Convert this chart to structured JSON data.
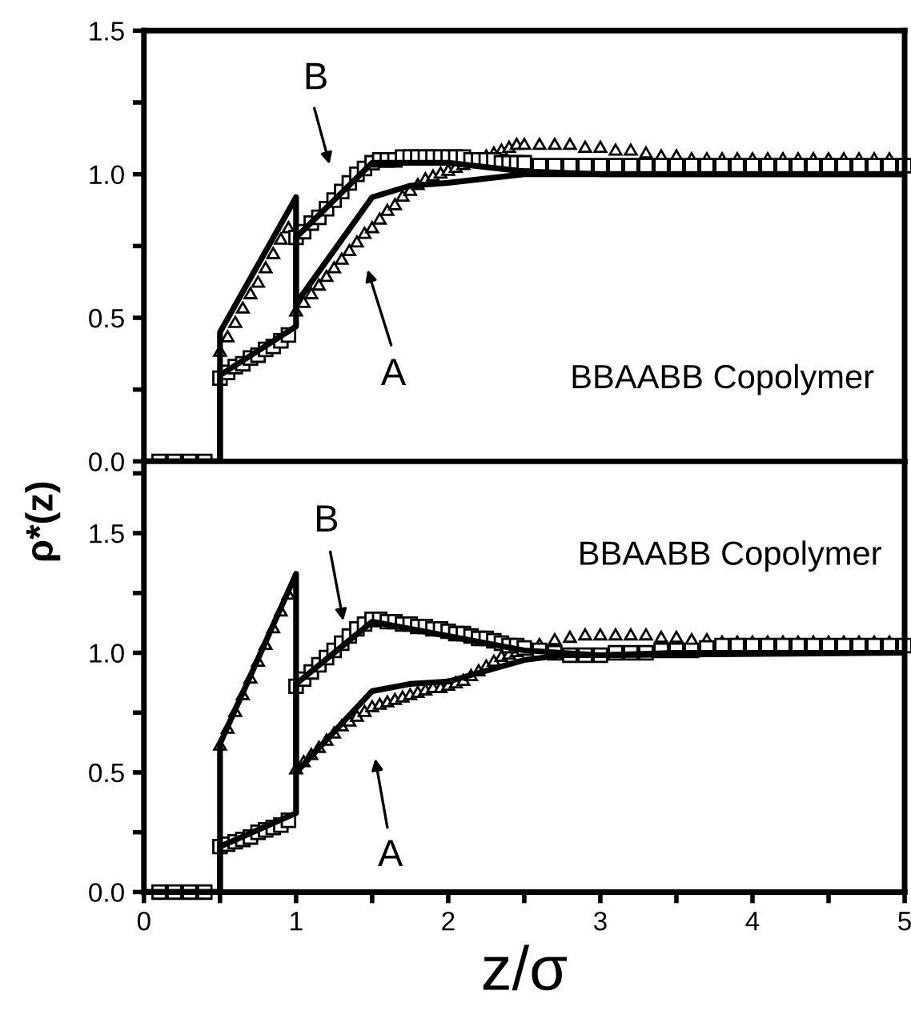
{
  "chart_data": [
    {
      "type": "scatter",
      "xlim": [
        0,
        5
      ],
      "ylim": [
        0,
        1.5
      ],
      "tick_labels": "y",
      "xticks": [
        0,
        {
          "value": 0.5,
          "label": null
        },
        1,
        {
          "value": 1.5,
          "label": null
        },
        2,
        {
          "value": 2.5,
          "label": null
        },
        3,
        {
          "value": 3.5,
          "label": null
        },
        4,
        {
          "value": 4.5,
          "label": null
        },
        5
      ],
      "yticks": [
        {
          "value": 0,
          "label": "0.0"
        },
        {
          "value": 0.25,
          "label": null
        },
        {
          "value": 0.5,
          "label": "0.5"
        },
        {
          "value": 0.75,
          "label": null
        },
        {
          "value": 1,
          "label": "1.0"
        },
        {
          "value": 1.25,
          "label": null
        },
        {
          "value": 1.5,
          "label": "1.5"
        }
      ],
      "series": [
        {
          "marker": "triangle",
          "color": "#000000",
          "x": [
            0.5,
            0.55,
            0.6,
            0.65,
            0.7,
            0.75,
            0.8,
            0.85,
            0.9,
            0.95,
            1,
            1.05,
            1.1,
            1.15,
            1.2,
            1.25,
            1.3,
            1.35,
            1.4,
            1.45,
            1.5,
            1.55,
            1.6,
            1.65,
            1.7,
            1.75,
            1.8,
            1.85,
            1.9,
            1.95,
            2,
            2.05,
            2.1,
            2.25,
            2.3,
            2.35,
            2.4,
            2.45,
            2.5,
            2.6,
            2.7,
            2.8,
            2.9,
            3,
            3.1,
            3.2,
            3.3,
            3.4,
            3.5,
            3.6,
            3.7,
            3.8,
            3.9,
            4,
            4.1,
            4.2,
            4.3,
            4.4,
            4.5,
            4.6,
            4.7,
            4.8,
            4.9
          ],
          "values": [
            0.38,
            0.43,
            0.48,
            0.53,
            0.58,
            0.62,
            0.67,
            0.72,
            0.77,
            0.81,
            0.52,
            0.55,
            0.58,
            0.61,
            0.64,
            0.67,
            0.7,
            0.73,
            0.76,
            0.79,
            0.81,
            0.84,
            0.87,
            0.89,
            0.92,
            0.94,
            0.96,
            0.98,
            0.99,
            1.0,
            1.01,
            1.02,
            1.03,
            1.06,
            1.07,
            1.08,
            1.09,
            1.1,
            1.1,
            1.1,
            1.1,
            1.1,
            1.09,
            1.09,
            1.08,
            1.08,
            1.07,
            1.06,
            1.06,
            1.05,
            1.05,
            1.05,
            1.05,
            1.05,
            1.05,
            1.05,
            1.05,
            1.05,
            1.05,
            1.05,
            1.05,
            1.05,
            1.05
          ]
        },
        {
          "marker": "square",
          "color": "#000000",
          "x": [
            0.1,
            0.2,
            0.3,
            0.4,
            0.5,
            0.55,
            0.6,
            0.65,
            0.7,
            0.75,
            0.8,
            0.85,
            0.9,
            0.95,
            1,
            1.05,
            1.1,
            1.15,
            1.2,
            1.25,
            1.3,
            1.35,
            1.4,
            1.45,
            1.5,
            1.55,
            1.6,
            1.65,
            1.7,
            1.75,
            1.8,
            1.85,
            1.9,
            1.95,
            2,
            2.05,
            2.1,
            2.15,
            2.2,
            2.25,
            2.3,
            2.35,
            2.4,
            2.45,
            2.5,
            2.6,
            2.7,
            2.8,
            2.9,
            3,
            3.1,
            3.2,
            3.3,
            3.4,
            3.5,
            3.6,
            3.7,
            3.8,
            3.9,
            4,
            4.1,
            4.2,
            4.3,
            4.4,
            4.5,
            4.6,
            4.7,
            4.8,
            4.9,
            5
          ],
          "values": [
            0,
            0,
            0,
            0,
            0.29,
            0.31,
            0.33,
            0.34,
            0.36,
            0.37,
            0.39,
            0.4,
            0.42,
            0.44,
            0.78,
            0.8,
            0.83,
            0.85,
            0.88,
            0.91,
            0.94,
            0.97,
            1.0,
            1.02,
            1.04,
            1.05,
            1.05,
            1.05,
            1.06,
            1.06,
            1.06,
            1.06,
            1.06,
            1.06,
            1.06,
            1.06,
            1.06,
            1.05,
            1.05,
            1.05,
            1.05,
            1.04,
            1.04,
            1.04,
            1.04,
            1.03,
            1.03,
            1.03,
            1.03,
            1.03,
            1.03,
            1.03,
            1.03,
            1.03,
            1.03,
            1.03,
            1.03,
            1.03,
            1.03,
            1.03,
            1.03,
            1.03,
            1.03,
            1.03,
            1.03,
            1.03,
            1.03,
            1.03,
            1.03,
            1.03
          ]
        },
        {
          "type": "line",
          "line_style": "solid",
          "color": "#000000",
          "x": [
            0,
            0.5,
            0.5,
            1.0,
            1.0,
            1.5,
            1.75,
            2.0,
            2.5,
            5
          ],
          "values": [
            0,
            0,
            0.45,
            0.92,
            0.55,
            0.92,
            0.96,
            0.97,
            1.0,
            1.0
          ]
        },
        {
          "type": "line",
          "line_style": "solid",
          "color": "#000000",
          "x": [
            0,
            0.5,
            0.5,
            1.0,
            1.0,
            1.5,
            2.0,
            2.5,
            3,
            5
          ],
          "values": [
            0,
            0,
            0.3,
            0.47,
            0.78,
            1.04,
            1.04,
            1.01,
            1.0,
            1.0
          ]
        }
      ],
      "annotations": [
        "B",
        "A",
        "BBAABB Copolymer"
      ]
    },
    {
      "type": "scatter",
      "xlim": [
        0,
        5
      ],
      "ylim": [
        0,
        1.8
      ],
      "xlabel": "z/σ",
      "ylabel": "ρ*(z)",
      "xticks": [
        0,
        {
          "value": 0.5,
          "label": null
        },
        1,
        {
          "value": 1.5,
          "label": null
        },
        2,
        {
          "value": 2.5,
          "label": null
        },
        3,
        {
          "value": 3.5,
          "label": null
        },
        4,
        {
          "value": 4.5,
          "label": null
        },
        5
      ],
      "yticks": [
        {
          "value": 0,
          "label": "0.0"
        },
        {
          "value": 0.25,
          "label": null
        },
        {
          "value": 0.5,
          "label": "0.5"
        },
        {
          "value": 0.75,
          "label": null
        },
        {
          "value": 1,
          "label": "1.0"
        },
        {
          "value": 1.25,
          "label": null
        },
        {
          "value": 1.5,
          "label": "1.5"
        },
        {
          "value": 1.75,
          "label": null
        }
      ],
      "series": [
        {
          "marker": "triangle",
          "color": "#000000",
          "x": [
            0.5,
            0.55,
            0.6,
            0.65,
            0.7,
            0.75,
            0.8,
            0.85,
            0.9,
            0.95,
            1,
            1.05,
            1.1,
            1.15,
            1.2,
            1.25,
            1.3,
            1.35,
            1.4,
            1.45,
            1.5,
            1.55,
            1.6,
            1.65,
            1.7,
            1.75,
            1.8,
            1.85,
            1.9,
            1.95,
            2,
            2.05,
            2.1,
            2.15,
            2.2,
            2.25,
            2.3,
            2.35,
            2.4,
            2.45,
            2.6,
            2.7,
            2.8,
            2.9,
            3,
            3.1,
            3.2,
            3.3,
            3.4,
            3.5,
            3.6,
            3.7,
            3.8,
            3.9,
            4,
            4.1,
            4.2,
            4.3,
            4.4,
            4.5,
            4.6,
            4.7,
            4.8,
            4.9
          ],
          "values": [
            0.61,
            0.68,
            0.75,
            0.82,
            0.89,
            0.96,
            1.03,
            1.1,
            1.17,
            1.24,
            0.51,
            0.54,
            0.57,
            0.6,
            0.63,
            0.66,
            0.69,
            0.71,
            0.73,
            0.75,
            0.77,
            0.78,
            0.79,
            0.8,
            0.81,
            0.82,
            0.83,
            0.84,
            0.85,
            0.85,
            0.86,
            0.87,
            0.88,
            0.9,
            0.92,
            0.94,
            0.96,
            0.98,
            0.99,
            1.0,
            1.03,
            1.05,
            1.06,
            1.07,
            1.07,
            1.07,
            1.07,
            1.07,
            1.06,
            1.06,
            1.05,
            1.05,
            1.04,
            1.04,
            1.04,
            1.04,
            1.04,
            1.04,
            1.04,
            1.04,
            1.04,
            1.04,
            1.04,
            1.04
          ]
        },
        {
          "marker": "square",
          "color": "#000000",
          "x": [
            0.1,
            0.2,
            0.3,
            0.4,
            0.5,
            0.55,
            0.6,
            0.65,
            0.7,
            0.75,
            0.8,
            0.85,
            0.9,
            0.95,
            1,
            1.05,
            1.1,
            1.15,
            1.2,
            1.25,
            1.3,
            1.35,
            1.4,
            1.45,
            1.5,
            1.55,
            1.6,
            1.65,
            1.7,
            1.75,
            1.8,
            1.85,
            1.9,
            1.95,
            2,
            2.05,
            2.1,
            2.15,
            2.2,
            2.25,
            2.3,
            2.35,
            2.4,
            2.45,
            2.5,
            2.6,
            2.7,
            2.8,
            2.9,
            3,
            3.1,
            3.2,
            3.3,
            3.4,
            3.5,
            3.6,
            3.7,
            3.8,
            3.9,
            4,
            4.1,
            4.2,
            4.3,
            4.4,
            4.5,
            4.6,
            4.7,
            4.8,
            4.9,
            5
          ],
          "values": [
            0,
            0,
            0,
            0,
            0.19,
            0.2,
            0.21,
            0.22,
            0.23,
            0.25,
            0.26,
            0.27,
            0.28,
            0.3,
            0.86,
            0.89,
            0.92,
            0.95,
            0.98,
            1.01,
            1.04,
            1.07,
            1.1,
            1.12,
            1.14,
            1.14,
            1.13,
            1.13,
            1.12,
            1.12,
            1.11,
            1.11,
            1.1,
            1.1,
            1.09,
            1.08,
            1.08,
            1.07,
            1.06,
            1.06,
            1.05,
            1.04,
            1.03,
            1.03,
            1.02,
            1.01,
            1.0,
            0.99,
            0.99,
            0.99,
            1.0,
            1.0,
            1.0,
            1.01,
            1.01,
            1.01,
            1.02,
            1.03,
            1.03,
            1.03,
            1.03,
            1.03,
            1.03,
            1.03,
            1.03,
            1.03,
            1.03,
            1.03,
            1.03,
            1.03
          ]
        },
        {
          "type": "line",
          "line_style": "solid",
          "color": "#000000",
          "x": [
            0,
            0.5,
            0.5,
            1.0,
            1.0,
            1.5,
            1.75,
            2.0,
            2.5,
            2.75,
            3,
            3.5,
            5
          ],
          "values": [
            0,
            0,
            0.62,
            1.33,
            0.5,
            0.84,
            0.87,
            0.88,
            0.97,
            0.99,
            0.99,
            1.0,
            1.0
          ]
        },
        {
          "type": "line",
          "line_style": "solid",
          "color": "#000000",
          "x": [
            0,
            0.5,
            0.5,
            1.0,
            1.0,
            1.5,
            2.0,
            2.5,
            3,
            5
          ],
          "values": [
            0,
            0,
            0.19,
            0.33,
            0.87,
            1.13,
            1.07,
            1.01,
            0.99,
            1.0
          ]
        }
      ],
      "annotations": [
        "B",
        "A",
        "BBAABB Copolymer"
      ]
    }
  ]
}
